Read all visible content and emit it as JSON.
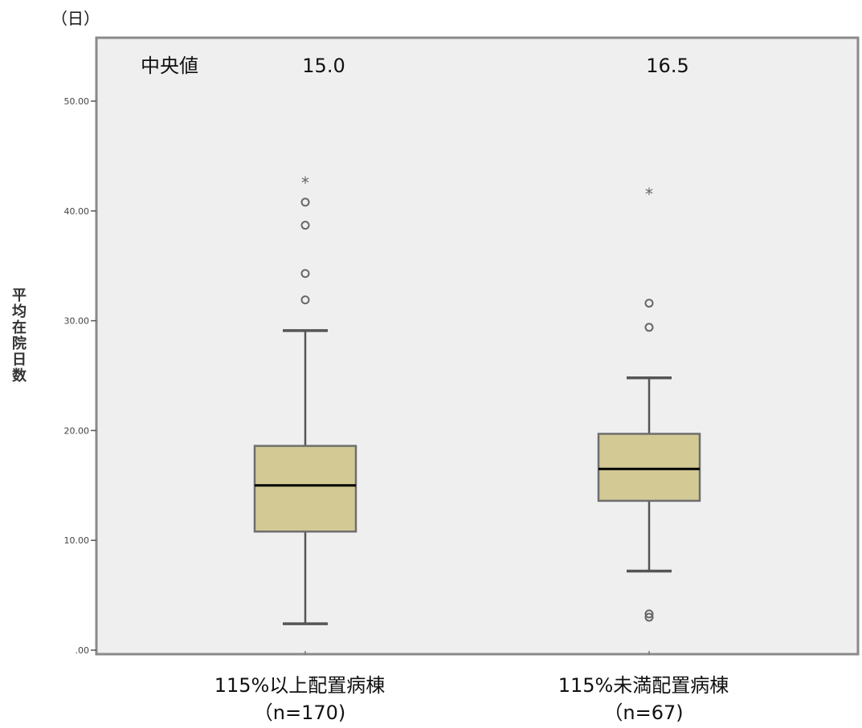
{
  "chart_data": {
    "type": "box",
    "y_unit": "（日）",
    "ylabel": "平均在院日数",
    "ylim": [
      0,
      55
    ],
    "yticks": [
      {
        "value": 0,
        "label": ".00"
      },
      {
        "value": 10,
        "label": "10.00"
      },
      {
        "value": 20,
        "label": "20.00"
      },
      {
        "value": 30,
        "label": "30.00"
      },
      {
        "value": 40,
        "label": "40.00"
      },
      {
        "value": 50,
        "label": "50.00"
      }
    ],
    "median_header": "中央値",
    "groups": [
      {
        "label_line1": "115%以上配置病棟",
        "label_line2": "（n=170)",
        "median_text": "15.0",
        "whisker_low": 2.4,
        "q1": 10.8,
        "median": 15.0,
        "q3": 18.6,
        "whisker_high": 29.1,
        "outliers": [
          31.9,
          34.3,
          38.7,
          40.8
        ],
        "extremes": [
          42.6
        ]
      },
      {
        "label_line1": "115%未満配置病棟",
        "label_line2": "（n=67)",
        "median_text": "16.5",
        "whisker_low": 7.2,
        "q1": 13.6,
        "median": 16.5,
        "q3": 19.7,
        "whisker_high": 24.8,
        "outliers": [
          3.0,
          3.3,
          29.4,
          31.6
        ],
        "extremes": [
          41.6
        ]
      }
    ],
    "colors": {
      "plot_bg": "#efefef",
      "frame": "#8a8a8a",
      "box_fill": "#d2c995",
      "box_stroke": "#6e6e6e",
      "whisker": "#555555",
      "median": "#000000",
      "outlier": "#666666"
    }
  }
}
